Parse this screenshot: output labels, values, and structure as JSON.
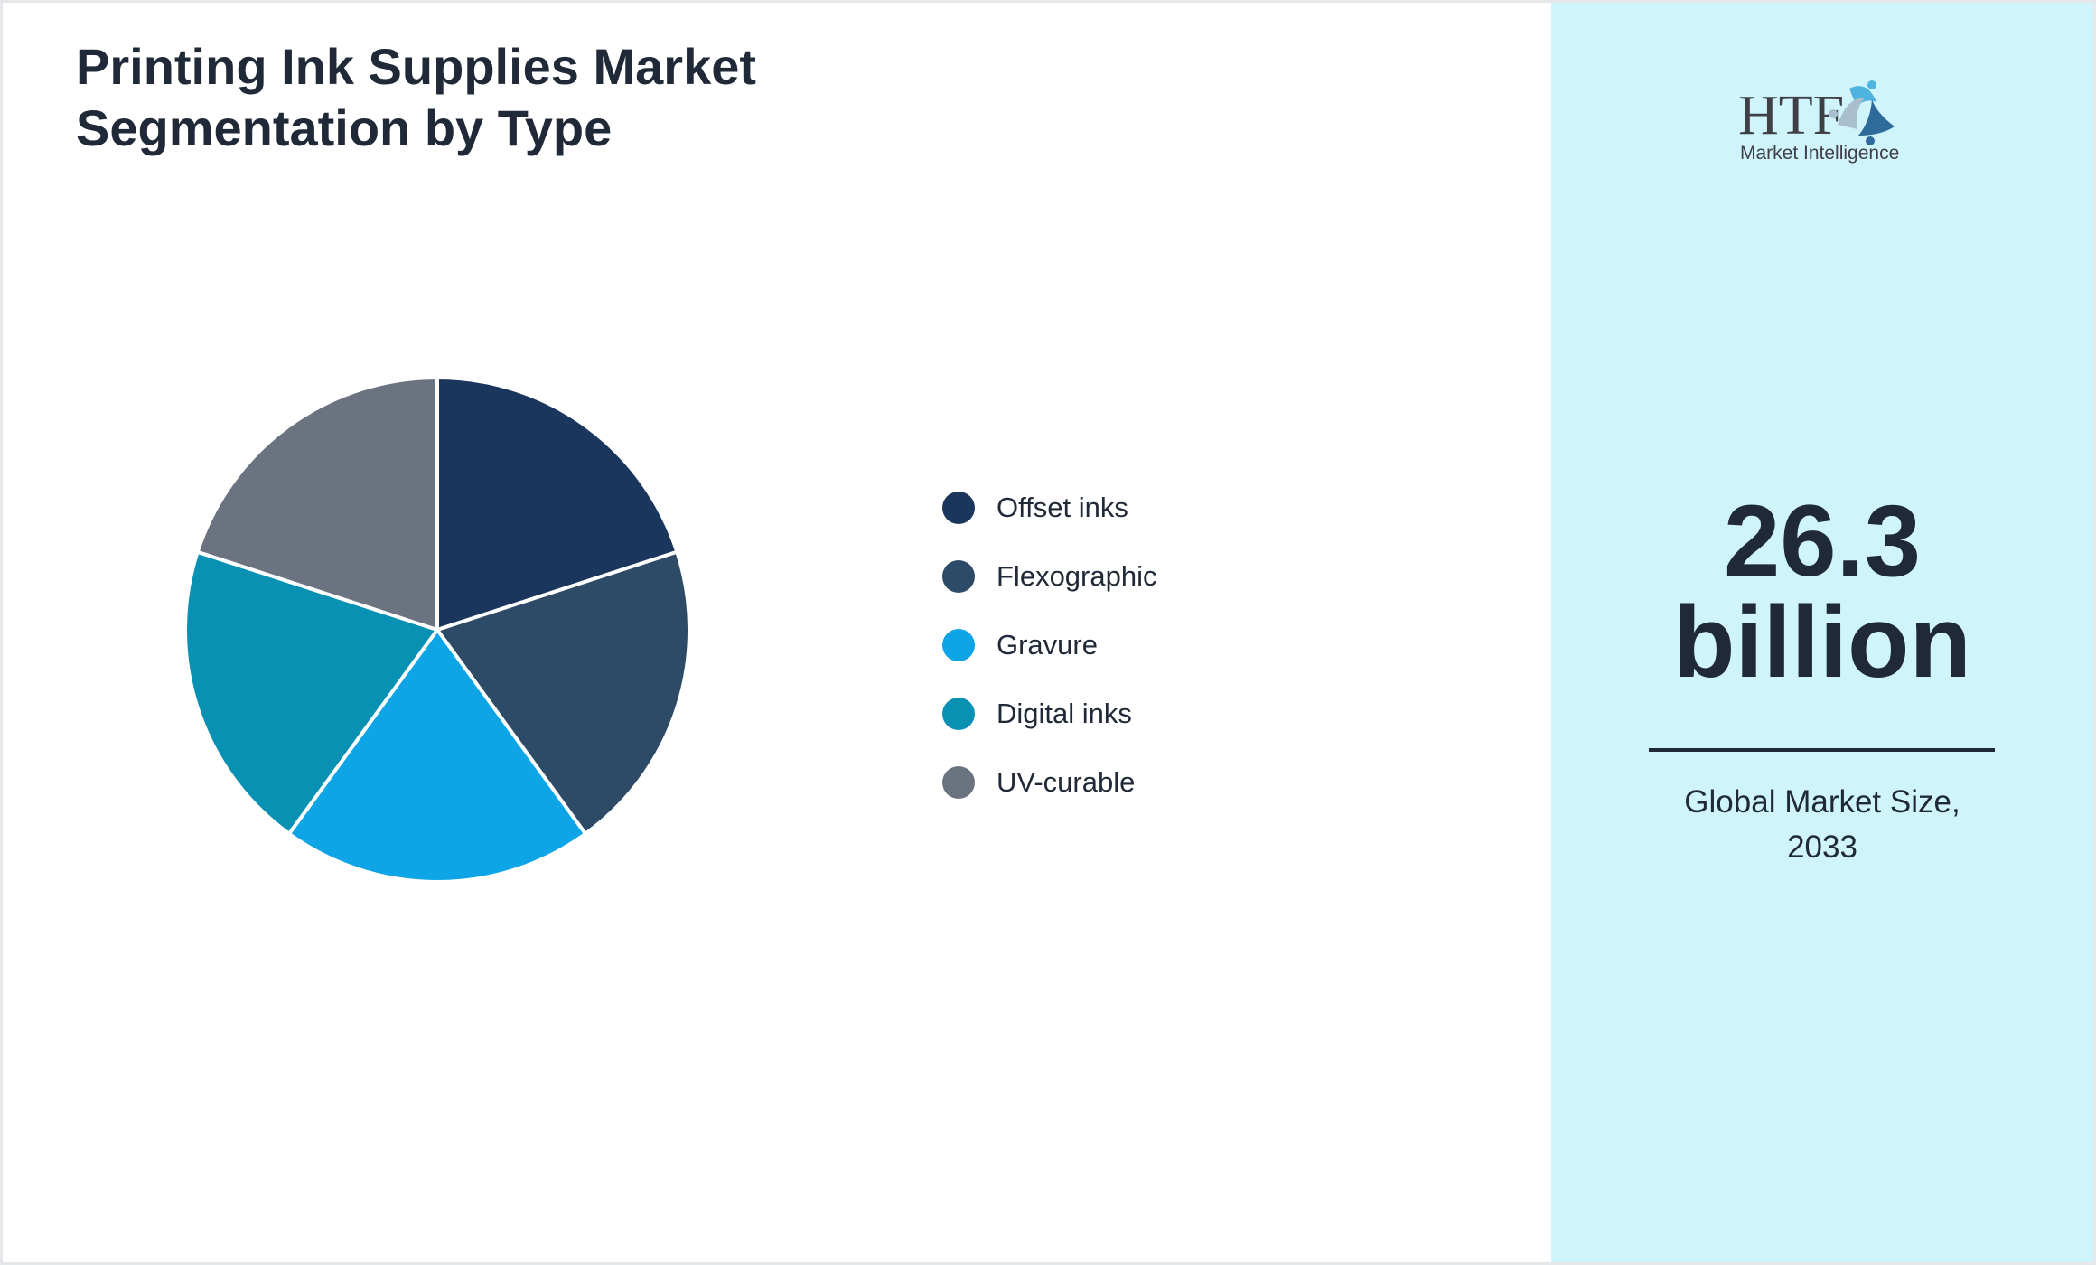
{
  "title": "Printing Ink Supplies Market Segmentation by Type",
  "chart_data": {
    "type": "pie",
    "title": "Printing Ink Supplies Market Segmentation by Type",
    "categories": [
      "Offset inks",
      "Flexographic",
      "Gravure",
      "Digital inks",
      "UV-curable"
    ],
    "values": [
      20,
      20,
      20,
      20,
      20
    ],
    "colors": [
      "#1b365d",
      "#2d4a66",
      "#0ea5e6",
      "#0891b2",
      "#6b7280"
    ],
    "legend_position": "right"
  },
  "legend": [
    {
      "label": "Offset inks",
      "color": "#1b365d"
    },
    {
      "label": "Flexographic",
      "color": "#2d4a66"
    },
    {
      "label": "Gravure",
      "color": "#0ea5e6"
    },
    {
      "label": "Digital inks",
      "color": "#0891b2"
    },
    {
      "label": "UV-curable",
      "color": "#6b7280"
    }
  ],
  "panel": {
    "logo_text": "HTF",
    "logo_subtext": "Market Intelligence",
    "value_line1": "26.3",
    "value_line2": "billion",
    "caption_line1": "Global Market Size,",
    "caption_line2": "2033",
    "background": "#cff4fc"
  }
}
